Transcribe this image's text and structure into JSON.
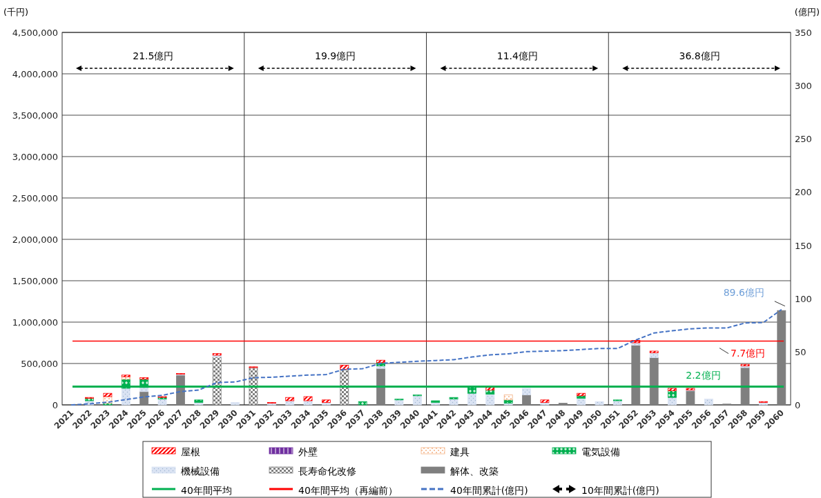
{
  "chart_data": {
    "type": "bar",
    "stacked": true,
    "ylabel": "(千円)",
    "y2label": "(億円)",
    "categories": [
      "2021",
      "2022",
      "2023",
      "2024",
      "2025",
      "2026",
      "2027",
      "2028",
      "2029",
      "2030",
      "2031",
      "2032",
      "2033",
      "2034",
      "2035",
      "2036",
      "2037",
      "2038",
      "2039",
      "2040",
      "2041",
      "2042",
      "2043",
      "2044",
      "2045",
      "2046",
      "2047",
      "2048",
      "2049",
      "2050",
      "2051",
      "2052",
      "2053",
      "2054",
      "2055",
      "2056",
      "2057",
      "2058",
      "2059",
      "2060"
    ],
    "series": [
      {
        "name": "解体、改築",
        "color": "#7f7f7f",
        "values": [
          null,
          null,
          null,
          null,
          160000,
          null,
          360000,
          null,
          null,
          null,
          null,
          null,
          null,
          null,
          null,
          null,
          null,
          440000,
          null,
          null,
          null,
          null,
          null,
          null,
          null,
          120000,
          null,
          20000,
          null,
          null,
          null,
          720000,
          570000,
          null,
          170000,
          null,
          10000,
          450000,
          null,
          1140000
        ]
      },
      {
        "name": "長寿命化改修",
        "color": "#808080",
        "values": [
          null,
          null,
          null,
          null,
          null,
          null,
          null,
          null,
          580000,
          null,
          450000,
          null,
          null,
          null,
          null,
          430000,
          null,
          null,
          null,
          null,
          null,
          null,
          null,
          null,
          null,
          null,
          null,
          null,
          null,
          null,
          null,
          null,
          null,
          null,
          null,
          null,
          null,
          null,
          null,
          null
        ]
      },
      {
        "name": "機械設備",
        "color": "#dae3f3",
        "values": [
          null,
          50000,
          null,
          200000,
          50000,
          70000,
          10000,
          30000,
          20000,
          30000,
          null,
          20000,
          50000,
          50000,
          30000,
          null,
          null,
          30000,
          60000,
          110000,
          30000,
          70000,
          140000,
          130000,
          20000,
          80000,
          30000,
          null,
          80000,
          40000,
          50000,
          30000,
          60000,
          90000,
          10000,
          70000,
          null,
          20000,
          30000,
          null
        ]
      },
      {
        "name": "電気設備",
        "color": "#00b050",
        "values": [
          null,
          30000,
          20000,
          110000,
          100000,
          20000,
          null,
          30000,
          null,
          null,
          null,
          null,
          null,
          null,
          null,
          null,
          40000,
          40000,
          10000,
          10000,
          20000,
          20000,
          70000,
          50000,
          40000,
          null,
          null,
          null,
          30000,
          null,
          10000,
          null,
          null,
          80000,
          null,
          null,
          null,
          null,
          null,
          null
        ]
      },
      {
        "name": "建具",
        "color": "#f4b183",
        "values": [
          null,
          null,
          80000,
          30000,
          null,
          null,
          null,
          null,
          null,
          null,
          null,
          null,
          null,
          null,
          null,
          null,
          null,
          null,
          null,
          null,
          null,
          null,
          null,
          null,
          60000,
          null,
          null,
          null,
          null,
          null,
          null,
          null,
          null,
          null,
          null,
          null,
          null,
          null,
          null,
          null
        ]
      },
      {
        "name": "外壁",
        "color": "#7030a0",
        "values": [
          null,
          null,
          null,
          null,
          null,
          null,
          null,
          null,
          null,
          null,
          null,
          null,
          null,
          null,
          null,
          null,
          null,
          null,
          null,
          null,
          null,
          null,
          null,
          null,
          null,
          null,
          null,
          null,
          null,
          null,
          null,
          null,
          null,
          null,
          null,
          null,
          null,
          null,
          null,
          null
        ]
      },
      {
        "name": "屋根",
        "color": "#ff0000",
        "values": [
          null,
          10000,
          40000,
          20000,
          20000,
          10000,
          10000,
          null,
          20000,
          null,
          10000,
          10000,
          40000,
          50000,
          30000,
          50000,
          null,
          30000,
          null,
          null,
          null,
          null,
          null,
          30000,
          null,
          null,
          30000,
          null,
          30000,
          null,
          null,
          30000,
          20000,
          30000,
          20000,
          null,
          null,
          20000,
          10000,
          null
        ]
      },
      {
        "name": "40年間累計(億円)",
        "type": "line",
        "axis": "y2",
        "color": "#4472c4",
        "line_style": "dashed",
        "marker": "none",
        "values": [
          0,
          1,
          2.5,
          5,
          7.5,
          9,
          12.5,
          14,
          21,
          21.5,
          25.5,
          26,
          27,
          28,
          28.5,
          33.5,
          34,
          39,
          40,
          41,
          41.7,
          42.5,
          45,
          47,
          48,
          50,
          50.5,
          51,
          52,
          53,
          53,
          61,
          67.6,
          69.6,
          71.5,
          72.3,
          72.3,
          77,
          77.3,
          89.6
        ]
      }
    ],
    "ylim": [
      0,
      4500000
    ],
    "yticks": [
      0,
      {
        "value": 500000,
        "label": "500,000"
      },
      {
        "value": 1000000,
        "label": "1,000,000"
      },
      {
        "value": 1500000,
        "label": "1,500,000"
      },
      {
        "value": 2000000,
        "label": "2,000,000"
      },
      {
        "value": 2500000,
        "label": "2,500,000"
      },
      {
        "value": 3000000,
        "label": "3,000,000"
      },
      {
        "value": 3500000,
        "label": "3,500,000"
      },
      {
        "value": 4000000,
        "label": "4,000,000"
      },
      {
        "value": 4500000,
        "label": "4,500,000"
      }
    ],
    "y2lim": [
      0,
      350
    ],
    "y2ticks": [
      0,
      50,
      100,
      150,
      200,
      250,
      300,
      350
    ],
    "ref_lines": [
      {
        "axis": "y",
        "value": 220000,
        "label": "2.2億円",
        "color": "#00b050"
      },
      {
        "axis": "y",
        "value": 770000,
        "label": "7.7億円",
        "color": "#ff0000"
      }
    ],
    "annotations": [
      "21.5億円",
      "19.9億円",
      "11.4億円",
      "36.8億円",
      "89.6億円",
      "40年間平均",
      "40年間平均（再編前）",
      "10年間累計(億円)"
    ],
    "grid": "y",
    "legend": "bottom"
  }
}
